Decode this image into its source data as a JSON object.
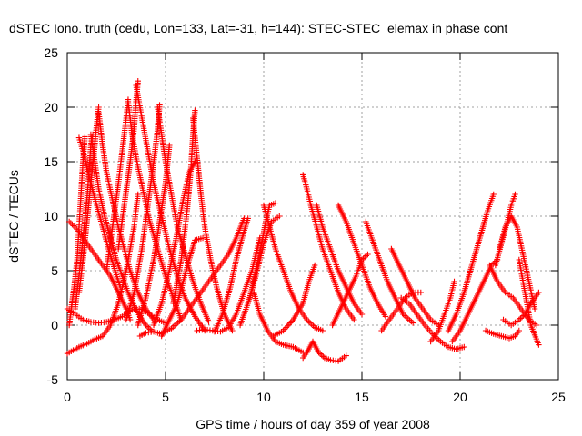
{
  "chart_data": {
    "type": "scatter",
    "title": "dSTEC Iono. truth (cedu, Lon=133, Lat=-31, h=144): STEC-STEC_elemax in phase cont",
    "xlabel": "GPS time / hours of day 359 of year 2008",
    "ylabel": "dSTEC  / TECUs",
    "xlim": [
      0,
      25
    ],
    "ylim": [
      -5,
      25
    ],
    "x_ticks": [
      0,
      5,
      10,
      15,
      20,
      25
    ],
    "y_ticks": [
      -5,
      0,
      5,
      10,
      15,
      20,
      25
    ],
    "grid": true,
    "marker": "+",
    "color": "#ff0000",
    "series": [
      {
        "x": [
          0.0,
          0.4,
          0.8,
          1.2,
          1.6,
          2.0,
          2.4,
          2.8,
          3.1,
          3.4,
          3.8,
          4.2,
          4.6,
          5.0
        ],
        "y": [
          1.5,
          1.0,
          0.5,
          0.3,
          0.2,
          0.3,
          0.5,
          0.8,
          1.2,
          1.5,
          1.5,
          1.0,
          0.5,
          0.2
        ]
      },
      {
        "x": [
          0.0,
          0.3,
          0.6,
          1.0,
          1.4,
          1.8,
          2.2,
          2.6,
          3.0,
          3.4,
          3.6
        ],
        "y": [
          -2.6,
          -2.3,
          -2.0,
          -1.7,
          -1.3,
          -1.0,
          0.0,
          2.0,
          5.0,
          9.0,
          12.0
        ]
      },
      {
        "x": [
          0.1,
          0.4,
          0.7,
          1.0,
          1.4,
          1.8,
          2.2,
          2.6,
          3.0,
          3.2
        ],
        "y": [
          9.5,
          9.0,
          8.3,
          7.5,
          6.5,
          5.5,
          4.5,
          3.0,
          1.5,
          0.5
        ]
      },
      {
        "x": [
          0.1,
          0.2,
          0.35,
          0.5,
          0.6,
          0.7,
          0.8,
          0.9
        ],
        "y": [
          0.0,
          1.5,
          3.5,
          6.0,
          9.0,
          12.0,
          15.0,
          17.3
        ]
      },
      {
        "x": [
          0.6,
          0.8,
          1.0,
          1.2,
          1.5,
          1.8,
          2.1,
          2.4,
          2.7
        ],
        "y": [
          17.2,
          16.0,
          14.5,
          13.0,
          11.0,
          9.0,
          7.0,
          5.2,
          3.5
        ]
      },
      {
        "x": [
          0.4,
          0.6,
          0.8,
          1.0,
          1.1,
          1.2,
          1.3
        ],
        "y": [
          1.5,
          4.5,
          8.0,
          11.5,
          14.0,
          16.5,
          17.5
        ]
      },
      {
        "x": [
          1.2,
          1.4,
          1.6,
          1.9,
          2.2,
          2.5,
          2.8,
          3.1,
          3.4,
          3.7,
          4.0,
          4.3
        ],
        "y": [
          17.5,
          15.0,
          12.5,
          10.0,
          8.0,
          6.0,
          4.5,
          3.0,
          1.8,
          0.8,
          0.0,
          -0.5
        ]
      },
      {
        "x": [
          0.6,
          0.8,
          1.0,
          1.2,
          1.4,
          1.5,
          1.6
        ],
        "y": [
          3.0,
          6.0,
          9.5,
          13.0,
          16.5,
          18.5,
          20.0
        ]
      },
      {
        "x": [
          1.6,
          1.8,
          2.0,
          2.3,
          2.6,
          2.9,
          3.2,
          3.6,
          4.0,
          4.4
        ],
        "y": [
          19.5,
          16.5,
          14.0,
          11.5,
          9.0,
          7.0,
          5.0,
          3.0,
          1.5,
          0.5
        ]
      },
      {
        "x": [
          2.0,
          2.3,
          2.6,
          2.8,
          3.0,
          3.1
        ],
        "y": [
          5.0,
          9.0,
          13.0,
          16.0,
          19.0,
          20.7
        ]
      },
      {
        "x": [
          3.1,
          3.3,
          3.6,
          3.9,
          4.2,
          4.6,
          5.0,
          5.4,
          5.8
        ],
        "y": [
          20.5,
          17.5,
          14.5,
          12.0,
          9.5,
          7.0,
          4.5,
          2.5,
          0.5
        ]
      },
      {
        "x": [
          2.6,
          2.9,
          3.2,
          3.4,
          3.5,
          3.6
        ],
        "y": [
          7.0,
          11.0,
          15.0,
          18.0,
          20.5,
          22.4
        ]
      },
      {
        "x": [
          3.5,
          3.8,
          4.1,
          4.4,
          4.8,
          5.2,
          5.6,
          6.0,
          6.5,
          7.0
        ],
        "y": [
          22.0,
          19.0,
          16.0,
          13.0,
          10.0,
          7.0,
          4.5,
          2.5,
          0.8,
          -0.5
        ]
      },
      {
        "x": [
          3.0,
          3.4,
          3.8,
          4.1,
          4.4,
          4.6,
          4.7
        ],
        "y": [
          0.5,
          3.0,
          7.0,
          11.0,
          15.0,
          18.0,
          20.2
        ]
      },
      {
        "x": [
          4.6,
          4.8,
          5.0,
          5.3,
          5.6,
          6.0,
          6.4,
          6.8,
          7.2
        ],
        "y": [
          20.0,
          17.5,
          15.0,
          12.0,
          9.0,
          6.5,
          4.0,
          2.0,
          0.3
        ]
      },
      {
        "x": [
          3.6,
          4.0,
          4.4,
          4.7,
          5.0,
          5.2
        ],
        "y": [
          0.0,
          2.5,
          6.0,
          9.5,
          13.0,
          16.5
        ]
      },
      {
        "x": [
          4.4,
          4.8,
          5.2,
          5.6,
          5.9,
          6.2,
          6.5
        ],
        "y": [
          0.0,
          2.0,
          5.0,
          8.5,
          11.5,
          14.0,
          15.0
        ]
      },
      {
        "x": [
          5.4,
          5.8,
          6.1,
          6.3,
          6.4,
          6.5
        ],
        "y": [
          2.0,
          6.0,
          10.5,
          14.5,
          17.5,
          19.7
        ]
      },
      {
        "x": [
          6.4,
          6.6,
          6.8,
          7.0,
          7.3,
          7.6,
          8.0,
          8.4
        ],
        "y": [
          19.0,
          15.5,
          12.0,
          9.0,
          6.0,
          3.5,
          1.0,
          -0.5
        ]
      },
      {
        "x": [
          4.8,
          5.2,
          5.6,
          5.9,
          6.2,
          6.5,
          6.9
        ],
        "y": [
          -1.0,
          0.5,
          2.0,
          4.0,
          6.0,
          7.8,
          8.0
        ]
      },
      {
        "x": [
          3.7,
          4.0,
          4.4,
          4.8,
          5.3,
          5.8,
          6.2,
          6.6,
          7.0,
          7.4,
          7.8,
          8.2,
          8.6,
          9.0
        ],
        "y": [
          -1.0,
          -0.7,
          -0.6,
          -0.8,
          -0.3,
          0.5,
          1.5,
          2.5,
          3.5,
          4.5,
          5.5,
          6.5,
          8.0,
          9.8
        ]
      },
      {
        "x": [
          6.6,
          7.0,
          7.4,
          7.8,
          8.2,
          8.6,
          9.0,
          9.4,
          9.8
        ],
        "y": [
          -0.5,
          -0.4,
          -0.5,
          -0.6,
          -0.2,
          1.0,
          3.0,
          5.0,
          8.0
        ]
      },
      {
        "x": [
          7.5,
          7.9,
          8.3,
          8.6,
          8.9,
          9.2
        ],
        "y": [
          -0.6,
          1.0,
          3.5,
          6.0,
          8.0,
          9.8
        ]
      },
      {
        "x": [
          9.3,
          9.6,
          9.9,
          10.1,
          10.3,
          10.6
        ],
        "y": [
          2.5,
          5.0,
          7.5,
          9.5,
          11.0,
          11.2
        ]
      },
      {
        "x": [
          10.0,
          10.3,
          10.6,
          11.0,
          11.4,
          11.8,
          12.2,
          12.6,
          13.0
        ],
        "y": [
          11.0,
          9.0,
          7.0,
          5.0,
          3.0,
          1.5,
          0.5,
          -0.2,
          -0.5
        ]
      },
      {
        "x": [
          8.8,
          9.2,
          9.6,
          10.0,
          10.4,
          10.8
        ],
        "y": [
          0.0,
          2.0,
          4.5,
          7.5,
          9.5,
          10.0
        ]
      },
      {
        "x": [
          9.5,
          9.8,
          10.2,
          10.6,
          11.0,
          11.5,
          12.0
        ],
        "y": [
          3.0,
          1.0,
          -0.5,
          -1.5,
          -1.8,
          -2.0,
          -2.5
        ]
      },
      {
        "x": [
          10.5,
          11.0,
          11.5,
          12.0,
          12.3,
          12.6
        ],
        "y": [
          -1.0,
          -0.5,
          0.5,
          2.0,
          4.0,
          5.5
        ]
      },
      {
        "x": [
          12.0,
          12.2,
          12.5,
          12.8,
          13.1,
          13.4,
          13.8,
          14.2
        ],
        "y": [
          -3.0,
          -2.5,
          -1.5,
          -2.5,
          -3.0,
          -3.2,
          -3.3,
          -2.8
        ]
      },
      {
        "x": [
          12.0,
          12.2,
          12.4,
          12.7,
          13.0,
          13.4,
          13.8,
          14.2,
          14.6
        ],
        "y": [
          13.8,
          12.5,
          11.0,
          9.0,
          7.0,
          5.0,
          3.0,
          1.5,
          0.5
        ]
      },
      {
        "x": [
          12.7,
          13.0,
          13.4,
          13.8,
          14.2,
          14.6,
          15.0
        ],
        "y": [
          11.0,
          9.0,
          7.0,
          5.0,
          3.5,
          2.0,
          1.0
        ]
      },
      {
        "x": [
          13.8,
          14.2,
          14.6,
          15.0,
          15.4,
          15.8,
          16.2
        ],
        "y": [
          11.0,
          9.5,
          7.5,
          5.5,
          3.5,
          2.0,
          0.8
        ]
      },
      {
        "x": [
          13.5,
          13.9,
          14.3,
          14.7,
          15.0,
          15.3
        ],
        "y": [
          0.0,
          1.5,
          3.0,
          4.5,
          6.0,
          6.5
        ]
      },
      {
        "x": [
          15.2,
          15.5,
          15.9,
          16.3,
          16.7,
          17.1,
          17.6
        ],
        "y": [
          9.5,
          8.0,
          6.0,
          4.0,
          2.5,
          1.0,
          0.2
        ]
      },
      {
        "x": [
          16.0,
          16.4,
          16.8,
          17.2,
          17.6,
          18.0
        ],
        "y": [
          -0.5,
          0.5,
          1.5,
          2.5,
          3.0,
          3.0
        ]
      },
      {
        "x": [
          16.5,
          16.9,
          17.3,
          17.7,
          18.1,
          18.5,
          18.9
        ],
        "y": [
          7.0,
          5.5,
          4.0,
          2.5,
          1.5,
          0.5,
          0.0
        ]
      },
      {
        "x": [
          17.0,
          17.4,
          17.8,
          18.2,
          18.6,
          19.0,
          19.4,
          19.8,
          20.2
        ],
        "y": [
          2.5,
          2.0,
          1.0,
          0.0,
          -0.8,
          -1.5,
          -2.0,
          -2.2,
          -2.0
        ]
      },
      {
        "x": [
          18.5,
          18.9,
          19.2,
          19.5,
          19.7
        ],
        "y": [
          -1.5,
          -0.5,
          1.0,
          2.5,
          4.0
        ]
      },
      {
        "x": [
          19.4,
          19.8,
          20.2,
          20.6,
          21.0,
          21.4,
          21.7
        ],
        "y": [
          -0.5,
          1.0,
          3.0,
          5.5,
          8.0,
          10.5,
          12.0
        ]
      },
      {
        "x": [
          19.6,
          20.0,
          20.4,
          20.8,
          21.2,
          21.6,
          21.9
        ],
        "y": [
          -1.5,
          -0.5,
          1.0,
          2.5,
          4.0,
          5.5,
          6.0
        ]
      },
      {
        "x": [
          21.3,
          21.7,
          22.1,
          22.5,
          22.8,
          23.0
        ],
        "y": [
          -0.5,
          -0.8,
          -1.0,
          -1.2,
          -1.0,
          -0.5
        ]
      },
      {
        "x": [
          21.8,
          22.1,
          22.4,
          22.6,
          22.8
        ],
        "y": [
          5.5,
          7.5,
          9.5,
          11.0,
          12.0
        ]
      },
      {
        "x": [
          22.0,
          22.3,
          22.6,
          22.9,
          23.2,
          23.5,
          23.8
        ],
        "y": [
          7.0,
          9.0,
          10.0,
          9.0,
          6.5,
          4.0,
          1.5
        ]
      },
      {
        "x": [
          21.5,
          21.9,
          22.3,
          22.7,
          23.1,
          23.5,
          23.9
        ],
        "y": [
          5.5,
          4.0,
          3.0,
          2.5,
          1.5,
          0.5,
          0.0
        ]
      },
      {
        "x": [
          22.2,
          22.6,
          23.0,
          23.3,
          23.6,
          24.0
        ],
        "y": [
          0.5,
          0.0,
          0.5,
          1.0,
          2.0,
          3.0
        ]
      },
      {
        "x": [
          23.0,
          23.3,
          23.6,
          24.0
        ],
        "y": [
          6.0,
          3.0,
          0.0,
          -1.8
        ]
      }
    ]
  }
}
